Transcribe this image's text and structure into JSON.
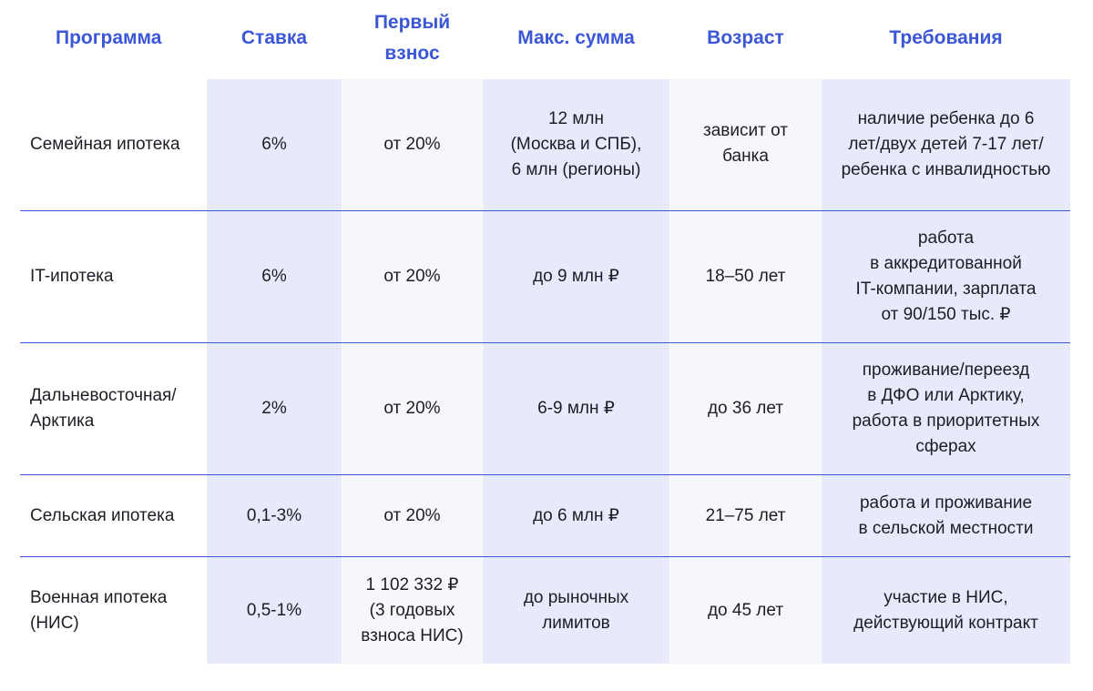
{
  "colors": {
    "accent": "#3b57d6",
    "column_highlight": "#e7eafa",
    "column_neutral": "#f6f7fb"
  },
  "headers": [
    "Программа",
    "Ставка",
    "Первый\nвзнос",
    "Макс. сумма",
    "Возраст",
    "Требования"
  ],
  "rows": [
    {
      "program": "Семейная ипотека",
      "rate": "6%",
      "down_payment": "от 20%",
      "max_sum": "12 млн\n(Москва и СПБ),\n6 млн (регионы)",
      "age": "зависит от\nбанка",
      "requirements": "наличие ребенка до 6\nлет/двух детей 7-17 лет/\nребенка с инвалидностью"
    },
    {
      "program": "IT-ипотека",
      "rate": "6%",
      "down_payment": "от 20%",
      "max_sum": "до 9 млн ₽",
      "age": "18–50 лет",
      "requirements": "работа\nв аккредитованной\nIT-компании, зарплата\nот 90/150 тыс. ₽"
    },
    {
      "program": "Дальневосточная/\nАрктика",
      "rate": "2%",
      "down_payment": "от 20%",
      "max_sum": "6-9 млн ₽",
      "age": "до 36 лет",
      "requirements": "проживание/переезд\nв ДФО или Арктику,\nработа в приоритетных\nсферах"
    },
    {
      "program": "Сельская ипотека",
      "rate": "0,1-3%",
      "down_payment": "от 20%",
      "max_sum": "до 6 млн ₽",
      "age": "21–75 лет",
      "requirements": "работа и проживание\nв сельской местности"
    },
    {
      "program": "Военная ипотека\n(НИС)",
      "rate": "0,5-1%",
      "down_payment": "1 102 332 ₽\n(3 годовых\nвзноса НИС)",
      "max_sum": "до рыночных\nлимитов",
      "age": "до 45 лет",
      "requirements": "участие в НИС,\nдействующий контракт"
    }
  ]
}
